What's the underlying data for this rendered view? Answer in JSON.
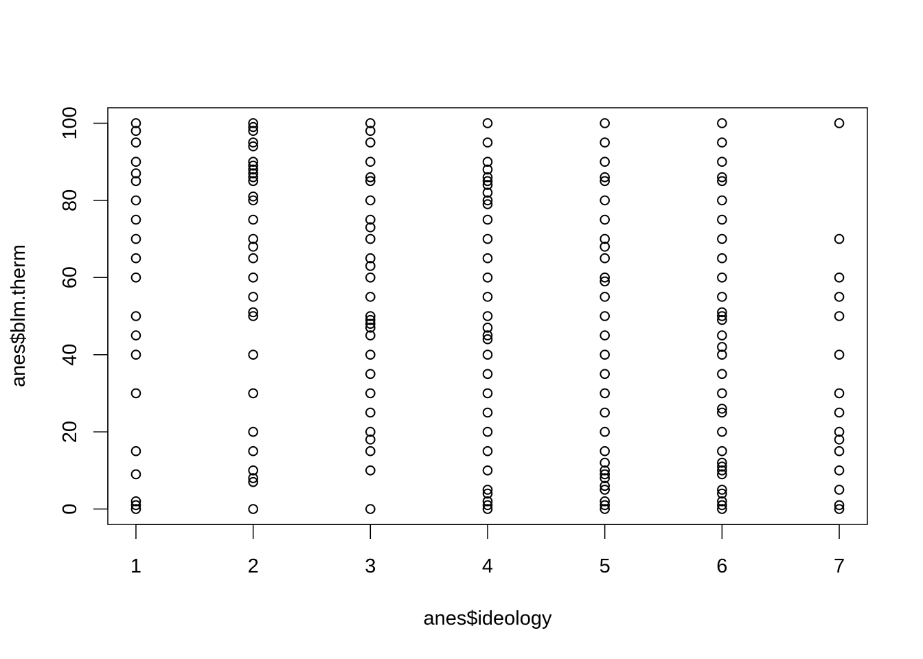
{
  "chart_data": {
    "type": "scatter",
    "title": "",
    "xlabel": "anes$ideology",
    "ylabel": "anes$blm.therm",
    "xlim": [
      0.76,
      7.24
    ],
    "ylim": [
      -4,
      104
    ],
    "x_ticks": [
      "1",
      "2",
      "3",
      "4",
      "5",
      "6",
      "7"
    ],
    "y_ticks": [
      "0",
      "20",
      "40",
      "60",
      "80",
      "100"
    ],
    "grid": false,
    "legend": "none",
    "marker": "open-circle",
    "color": "#000000",
    "points": [
      [
        1,
        100
      ],
      [
        1,
        98
      ],
      [
        1,
        95
      ],
      [
        1,
        90
      ],
      [
        1,
        87
      ],
      [
        1,
        85
      ],
      [
        1,
        80
      ],
      [
        1,
        75
      ],
      [
        1,
        70
      ],
      [
        1,
        65
      ],
      [
        1,
        60
      ],
      [
        1,
        50
      ],
      [
        1,
        45
      ],
      [
        1,
        40
      ],
      [
        1,
        30
      ],
      [
        1,
        15
      ],
      [
        1,
        9
      ],
      [
        1,
        2
      ],
      [
        1,
        1
      ],
      [
        1,
        0
      ],
      [
        2,
        100
      ],
      [
        2,
        99
      ],
      [
        2,
        98
      ],
      [
        2,
        95
      ],
      [
        2,
        94
      ],
      [
        2,
        90
      ],
      [
        2,
        89
      ],
      [
        2,
        88
      ],
      [
        2,
        87
      ],
      [
        2,
        86
      ],
      [
        2,
        85
      ],
      [
        2,
        81
      ],
      [
        2,
        80
      ],
      [
        2,
        75
      ],
      [
        2,
        70
      ],
      [
        2,
        68
      ],
      [
        2,
        65
      ],
      [
        2,
        60
      ],
      [
        2,
        55
      ],
      [
        2,
        51
      ],
      [
        2,
        50
      ],
      [
        2,
        40
      ],
      [
        2,
        30
      ],
      [
        2,
        20
      ],
      [
        2,
        15
      ],
      [
        2,
        10
      ],
      [
        2,
        8
      ],
      [
        2,
        7
      ],
      [
        2,
        0
      ],
      [
        3,
        100
      ],
      [
        3,
        98
      ],
      [
        3,
        95
      ],
      [
        3,
        90
      ],
      [
        3,
        86
      ],
      [
        3,
        85
      ],
      [
        3,
        80
      ],
      [
        3,
        75
      ],
      [
        3,
        73
      ],
      [
        3,
        70
      ],
      [
        3,
        65
      ],
      [
        3,
        63
      ],
      [
        3,
        60
      ],
      [
        3,
        55
      ],
      [
        3,
        50
      ],
      [
        3,
        49
      ],
      [
        3,
        48
      ],
      [
        3,
        47
      ],
      [
        3,
        45
      ],
      [
        3,
        40
      ],
      [
        3,
        35
      ],
      [
        3,
        30
      ],
      [
        3,
        25
      ],
      [
        3,
        20
      ],
      [
        3,
        18
      ],
      [
        3,
        15
      ],
      [
        3,
        10
      ],
      [
        3,
        0
      ],
      [
        4,
        100
      ],
      [
        4,
        95
      ],
      [
        4,
        90
      ],
      [
        4,
        88
      ],
      [
        4,
        86
      ],
      [
        4,
        85
      ],
      [
        4,
        84
      ],
      [
        4,
        82
      ],
      [
        4,
        80
      ],
      [
        4,
        79
      ],
      [
        4,
        75
      ],
      [
        4,
        70
      ],
      [
        4,
        65
      ],
      [
        4,
        60
      ],
      [
        4,
        55
      ],
      [
        4,
        50
      ],
      [
        4,
        47
      ],
      [
        4,
        45
      ],
      [
        4,
        44
      ],
      [
        4,
        40
      ],
      [
        4,
        35
      ],
      [
        4,
        30
      ],
      [
        4,
        25
      ],
      [
        4,
        20
      ],
      [
        4,
        15
      ],
      [
        4,
        10
      ],
      [
        4,
        5
      ],
      [
        4,
        4
      ],
      [
        4,
        2
      ],
      [
        4,
        1
      ],
      [
        4,
        0
      ],
      [
        5,
        100
      ],
      [
        5,
        95
      ],
      [
        5,
        90
      ],
      [
        5,
        86
      ],
      [
        5,
        85
      ],
      [
        5,
        80
      ],
      [
        5,
        75
      ],
      [
        5,
        70
      ],
      [
        5,
        68
      ],
      [
        5,
        65
      ],
      [
        5,
        60
      ],
      [
        5,
        59
      ],
      [
        5,
        55
      ],
      [
        5,
        50
      ],
      [
        5,
        45
      ],
      [
        5,
        40
      ],
      [
        5,
        35
      ],
      [
        5,
        30
      ],
      [
        5,
        25
      ],
      [
        5,
        20
      ],
      [
        5,
        15
      ],
      [
        5,
        12
      ],
      [
        5,
        10
      ],
      [
        5,
        9
      ],
      [
        5,
        8
      ],
      [
        5,
        6
      ],
      [
        5,
        5
      ],
      [
        5,
        2
      ],
      [
        5,
        1
      ],
      [
        5,
        0
      ],
      [
        6,
        100
      ],
      [
        6,
        95
      ],
      [
        6,
        90
      ],
      [
        6,
        86
      ],
      [
        6,
        85
      ],
      [
        6,
        80
      ],
      [
        6,
        75
      ],
      [
        6,
        70
      ],
      [
        6,
        65
      ],
      [
        6,
        60
      ],
      [
        6,
        55
      ],
      [
        6,
        51
      ],
      [
        6,
        50
      ],
      [
        6,
        49
      ],
      [
        6,
        45
      ],
      [
        6,
        42
      ],
      [
        6,
        40
      ],
      [
        6,
        35
      ],
      [
        6,
        30
      ],
      [
        6,
        26
      ],
      [
        6,
        25
      ],
      [
        6,
        20
      ],
      [
        6,
        15
      ],
      [
        6,
        12
      ],
      [
        6,
        11
      ],
      [
        6,
        10
      ],
      [
        6,
        9
      ],
      [
        6,
        5
      ],
      [
        6,
        4
      ],
      [
        6,
        2
      ],
      [
        6,
        1
      ],
      [
        6,
        0
      ],
      [
        7,
        100
      ],
      [
        7,
        70
      ],
      [
        7,
        60
      ],
      [
        7,
        55
      ],
      [
        7,
        50
      ],
      [
        7,
        40
      ],
      [
        7,
        30
      ],
      [
        7,
        25
      ],
      [
        7,
        20
      ],
      [
        7,
        18
      ],
      [
        7,
        15
      ],
      [
        7,
        10
      ],
      [
        7,
        5
      ],
      [
        7,
        1
      ],
      [
        7,
        0
      ]
    ]
  }
}
